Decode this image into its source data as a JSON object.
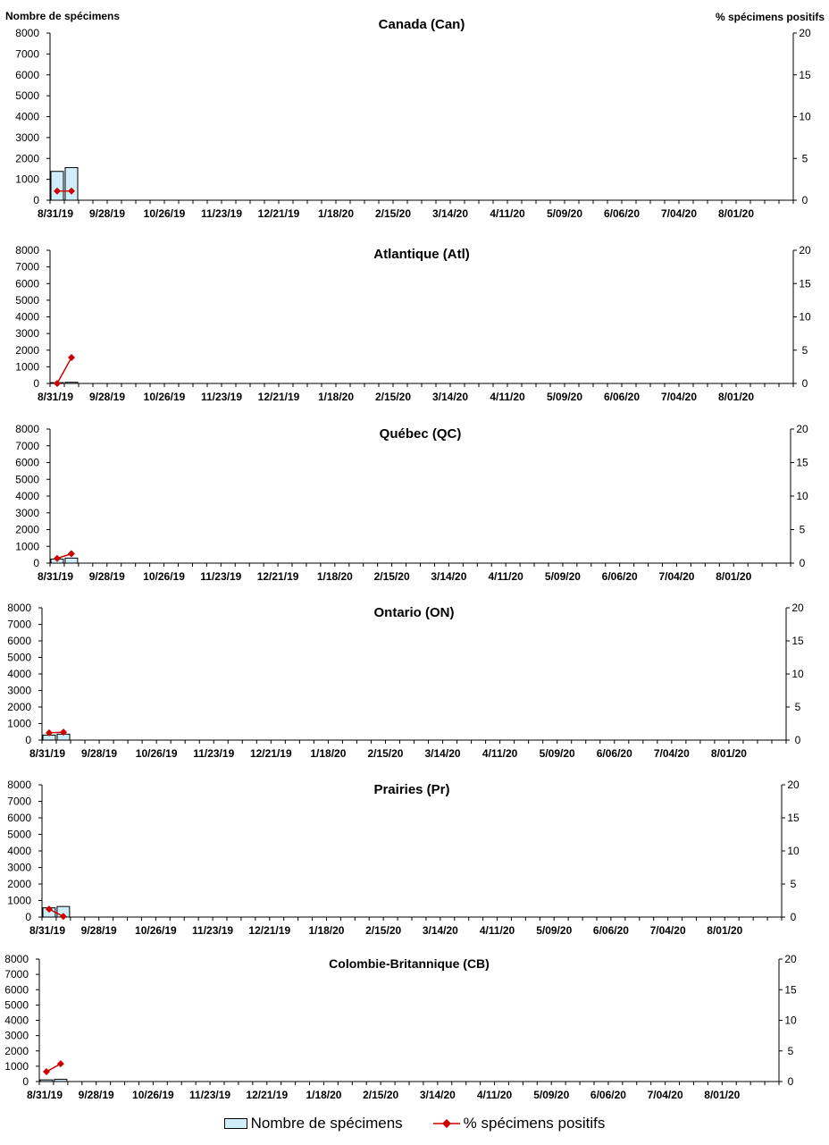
{
  "left_axis_title": "Nombre de spécimens",
  "right_axis_title": "% spécimens positifs",
  "legend": {
    "bars": "Nombre de spécimens",
    "line": "% spécimens positifs"
  },
  "colors": {
    "bar_fill": "#cfeefa",
    "bar_stroke": "#000000",
    "line": "#cc0000"
  },
  "chart_data": [
    {
      "type": "bar",
      "title": "Canada (Can)",
      "x_tick_labels": [
        "8/31/19",
        "9/28/19",
        "10/26/19",
        "11/23/19",
        "12/21/19",
        "1/18/20",
        "2/15/20",
        "3/14/20",
        "4/11/20",
        "5/09/20",
        "6/06/20",
        "7/04/20",
        "8/01/20"
      ],
      "weeks": 52,
      "ylim": [
        0,
        8000
      ],
      "yticks": [
        0,
        1000,
        2000,
        3000,
        4000,
        5000,
        6000,
        7000,
        8000
      ],
      "y2lim": [
        0,
        20
      ],
      "y2ticks": [
        0,
        5,
        10,
        15,
        20
      ],
      "series": [
        {
          "name": "Nombre de spécimens",
          "kind": "bar",
          "values": [
            1380,
            1560
          ]
        },
        {
          "name": "% spécimens positifs",
          "kind": "line",
          "values": [
            1.1,
            1.1
          ]
        }
      ]
    },
    {
      "type": "bar",
      "title": "Atlantique (Atl)",
      "x_tick_labels": [
        "8/31/19",
        "9/28/19",
        "10/26/19",
        "11/23/19",
        "12/21/19",
        "1/18/20",
        "2/15/20",
        "3/14/20",
        "4/11/20",
        "5/09/20",
        "6/06/20",
        "7/04/20",
        "8/01/20"
      ],
      "weeks": 52,
      "ylim": [
        0,
        8000
      ],
      "yticks": [
        0,
        1000,
        2000,
        3000,
        4000,
        5000,
        6000,
        7000,
        8000
      ],
      "y2lim": [
        0,
        20
      ],
      "y2ticks": [
        0,
        5,
        10,
        15,
        20
      ],
      "series": [
        {
          "name": "Nombre de spécimens",
          "kind": "bar",
          "values": [
            50,
            70
          ]
        },
        {
          "name": "% spécimens positifs",
          "kind": "line",
          "values": [
            0,
            3.9
          ]
        }
      ]
    },
    {
      "type": "bar",
      "title": "Québec (QC)",
      "x_tick_labels": [
        "8/31/19",
        "9/28/19",
        "10/26/19",
        "11/23/19",
        "12/21/19",
        "1/18/20",
        "2/15/20",
        "3/14/20",
        "4/11/20",
        "5/09/20",
        "6/06/20",
        "7/04/20",
        "8/01/20"
      ],
      "weeks": 52,
      "ylim": [
        0,
        8000
      ],
      "yticks": [
        0,
        1000,
        2000,
        3000,
        4000,
        5000,
        6000,
        7000,
        8000
      ],
      "y2lim": [
        0,
        20
      ],
      "y2ticks": [
        0,
        5,
        10,
        15,
        20
      ],
      "series": [
        {
          "name": "Nombre de spécimens",
          "kind": "bar",
          "values": [
            240,
            300
          ]
        },
        {
          "name": "% spécimens positifs",
          "kind": "line",
          "values": [
            0.7,
            1.4
          ]
        }
      ]
    },
    {
      "type": "bar",
      "title": "Ontario (ON)",
      "x_tick_labels": [
        "8/31/19",
        "9/28/19",
        "10/26/19",
        "11/23/19",
        "12/21/19",
        "1/18/20",
        "2/15/20",
        "3/14/20",
        "4/11/20",
        "5/09/20",
        "6/06/20",
        "7/04/20",
        "8/01/20"
      ],
      "weeks": 52,
      "ylim": [
        0,
        8000
      ],
      "yticks": [
        0,
        1000,
        2000,
        3000,
        4000,
        5000,
        6000,
        7000,
        8000
      ],
      "y2lim": [
        0,
        20
      ],
      "y2ticks": [
        0,
        5,
        10,
        15,
        20
      ],
      "series": [
        {
          "name": "Nombre de spécimens",
          "kind": "bar",
          "values": [
            300,
            360
          ]
        },
        {
          "name": "% spécimens positifs",
          "kind": "line",
          "values": [
            1.1,
            1.2
          ]
        }
      ]
    },
    {
      "type": "bar",
      "title": "Prairies (Pr)",
      "x_tick_labels": [
        "8/31/19",
        "9/28/19",
        "10/26/19",
        "11/23/19",
        "12/21/19",
        "1/18/20",
        "2/15/20",
        "3/14/20",
        "4/11/20",
        "5/09/20",
        "6/06/20",
        "7/04/20",
        "8/01/20"
      ],
      "weeks": 52,
      "ylim": [
        0,
        8000
      ],
      "yticks": [
        0,
        1000,
        2000,
        3000,
        4000,
        5000,
        6000,
        7000,
        8000
      ],
      "y2lim": [
        0,
        20
      ],
      "y2ticks": [
        0,
        5,
        10,
        15,
        20
      ],
      "series": [
        {
          "name": "Nombre de spécimens",
          "kind": "bar",
          "values": [
            560,
            640
          ]
        },
        {
          "name": "% spécimens positifs",
          "kind": "line",
          "values": [
            1.2,
            0.1
          ]
        }
      ]
    },
    {
      "type": "bar",
      "title": "Colombie-Britannique (CB)",
      "x_tick_labels": [
        "8/31/19",
        "9/28/19",
        "10/26/19",
        "11/23/19",
        "12/21/19",
        "1/18/20",
        "2/15/20",
        "3/14/20",
        "4/11/20",
        "5/09/20",
        "6/06/20",
        "7/04/20",
        "8/01/20"
      ],
      "weeks": 52,
      "ylim": [
        0,
        8000
      ],
      "yticks": [
        0,
        1000,
        2000,
        3000,
        4000,
        5000,
        6000,
        7000,
        8000
      ],
      "y2lim": [
        0,
        20
      ],
      "y2ticks": [
        0,
        5,
        10,
        15,
        20
      ],
      "series": [
        {
          "name": "Nombre de spécimens",
          "kind": "bar",
          "values": [
            110,
            150
          ]
        },
        {
          "name": "% spécimens positifs",
          "kind": "line",
          "values": [
            1.6,
            2.9
          ]
        }
      ]
    }
  ]
}
